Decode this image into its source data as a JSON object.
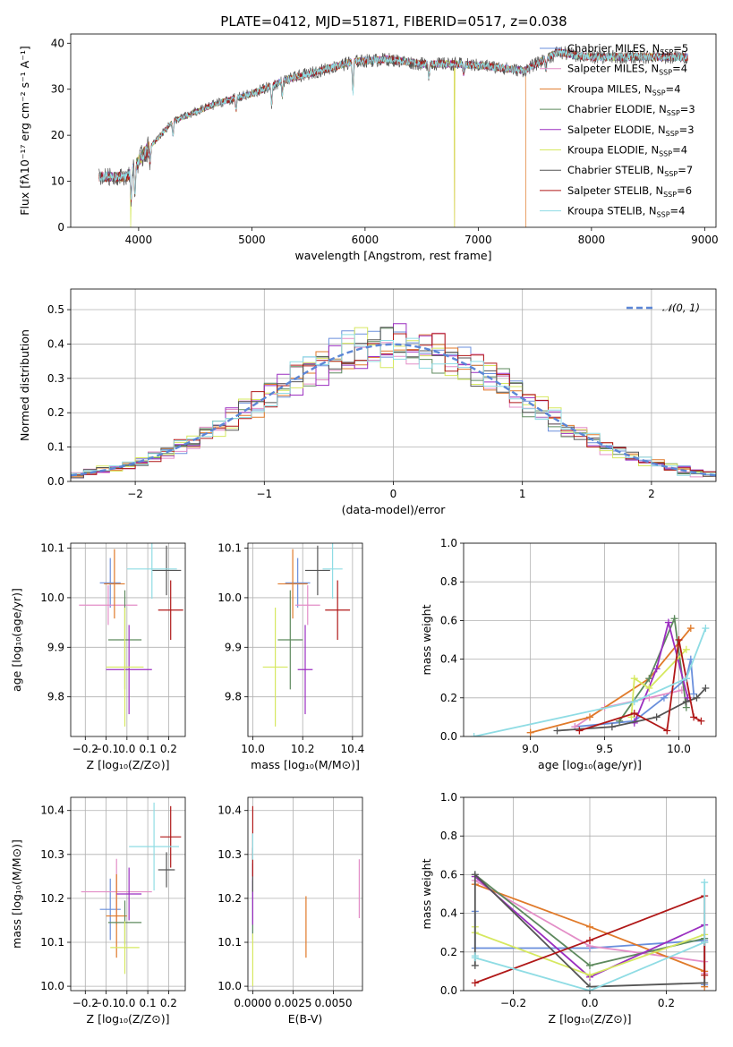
{
  "title": "PLATE=0412, MJD=51871, FIBERID=0517, z=0.038",
  "models": [
    {
      "name": "Chabrier MILES",
      "nssp": "5",
      "color": "#6a8fdc"
    },
    {
      "name": "Salpeter MILES",
      "nssp": "4",
      "color": "#e38ec7"
    },
    {
      "name": "Kroupa MILES",
      "nssp": "4",
      "color": "#e07a2a"
    },
    {
      "name": "Chabrier ELODIE",
      "nssp": "3",
      "color": "#5e8a5e"
    },
    {
      "name": "Salpeter ELODIE",
      "nssp": "3",
      "color": "#9b2fc0"
    },
    {
      "name": "Kroupa ELODIE",
      "nssp": "4",
      "color": "#d6e860"
    },
    {
      "name": "Chabrier STELIB",
      "nssp": "7",
      "color": "#555555"
    },
    {
      "name": "Salpeter STELIB",
      "nssp": "6",
      "color": "#b01818"
    },
    {
      "name": "Kroupa STELIB",
      "nssp": "4",
      "color": "#8fdce4"
    }
  ],
  "legend_nssp_prefix": "N",
  "legend_nssp_sub": "SSP",
  "chart_data": [
    {
      "id": "spectrum",
      "type": "line",
      "xlabel": "wavelength [Angstrom, rest frame]",
      "ylabel": "Flux [fλ10⁻¹⁷ erg cm⁻² s⁻¹ A⁻¹]",
      "xlim": [
        3400,
        9100
      ],
      "ylim": [
        0,
        42
      ],
      "xticks": [
        4000,
        5000,
        6000,
        7000,
        8000,
        9000
      ],
      "yticks": [
        0,
        10,
        20,
        30,
        40
      ],
      "grid": false,
      "legend": "right",
      "continuum": [
        [
          3650,
          11
        ],
        [
          3900,
          11
        ],
        [
          4050,
          16
        ],
        [
          4300,
          23
        ],
        [
          4700,
          27
        ],
        [
          5000,
          29
        ],
        [
          5300,
          32
        ],
        [
          5600,
          34
        ],
        [
          5900,
          36
        ],
        [
          6200,
          36.5
        ],
        [
          6500,
          35.5
        ],
        [
          6800,
          35.5
        ],
        [
          7100,
          35
        ],
        [
          7400,
          34
        ],
        [
          7700,
          38
        ],
        [
          8000,
          37
        ],
        [
          8400,
          37
        ],
        [
          8850,
          37
        ]
      ],
      "dropouts": [
        {
          "model": 5,
          "x": 3930
        },
        {
          "model": 2,
          "x": 6790
        },
        {
          "model": 5,
          "x": 6790
        },
        {
          "model": 2,
          "x": 7420
        }
      ]
    },
    {
      "id": "residuals",
      "type": "histogram",
      "xlabel": "(data-model)/error",
      "ylabel": "Normed distribution",
      "xlim": [
        -2.5,
        2.5
      ],
      "ylim": [
        0,
        0.56
      ],
      "xticks": [
        -2,
        -1,
        0,
        1,
        2
      ],
      "yticks": [
        0.0,
        0.1,
        0.2,
        0.3,
        0.4,
        0.5
      ],
      "grid": true,
      "legend": "top-right",
      "reference_curve": "𝒩(0, 1)",
      "bin_width": 0.1
    },
    {
      "id": "age_vs_Z",
      "type": "errorbar",
      "xlabel": "Z [log₁₀(Z/Z⊙)]",
      "ylabel": "age  [log₁₀(age/yr)]",
      "xlim": [
        -0.27,
        0.28
      ],
      "ylim": [
        9.72,
        10.11
      ],
      "xticks": [
        -0.2,
        -0.1,
        0.0,
        0.1,
        0.2
      ],
      "yticks": [
        9.8,
        9.9,
        10.0,
        10.1
      ],
      "points": [
        {
          "m": 0,
          "x": -0.08,
          "xe": 0.05,
          "y": 10.03,
          "ye": 0.05
        },
        {
          "m": 1,
          "x": -0.09,
          "xe": 0.14,
          "y": 9.985,
          "ye": 0.04
        },
        {
          "m": 2,
          "x": -0.06,
          "xe": 0.05,
          "y": 10.028,
          "ye": 0.07
        },
        {
          "m": 3,
          "x": -0.01,
          "xe": 0.08,
          "y": 9.915,
          "ye": 0.1
        },
        {
          "m": 4,
          "x": 0.01,
          "xe": 0.11,
          "y": 9.855,
          "ye": 0.09
        },
        {
          "m": 5,
          "x": -0.01,
          "xe": 0.09,
          "y": 9.86,
          "ye": 0.12
        },
        {
          "m": 6,
          "x": 0.19,
          "xe": 0.07,
          "y": 10.055,
          "ye": 0.05
        },
        {
          "m": 7,
          "x": 0.21,
          "xe": 0.06,
          "y": 9.975,
          "ye": 0.06
        },
        {
          "m": 8,
          "x": 0.12,
          "xe": 0.12,
          "y": 10.058,
          "ye": 0.06
        }
      ]
    },
    {
      "id": "age_vs_mass",
      "type": "errorbar",
      "xlabel": "mass [log₁₀(M/M⊙)]",
      "ylabel": "",
      "xlim": [
        9.98,
        10.44
      ],
      "ylim": [
        9.72,
        10.11
      ],
      "xticks": [
        10.0,
        10.2,
        10.4
      ],
      "yticks": [
        9.8,
        9.9,
        10.0,
        10.1
      ],
      "points": [
        {
          "m": 0,
          "x": 10.18,
          "xe": 0.05,
          "y": 10.03,
          "ye": 0.05
        },
        {
          "m": 1,
          "x": 10.22,
          "xe": 0.05,
          "y": 9.985,
          "ye": 0.04
        },
        {
          "m": 2,
          "x": 10.16,
          "xe": 0.06,
          "y": 10.028,
          "ye": 0.07
        },
        {
          "m": 3,
          "x": 10.15,
          "xe": 0.05,
          "y": 9.915,
          "ye": 0.1
        },
        {
          "m": 4,
          "x": 10.21,
          "xe": 0.03,
          "y": 9.855,
          "ye": 0.09
        },
        {
          "m": 5,
          "x": 10.09,
          "xe": 0.05,
          "y": 9.86,
          "ye": 0.12
        },
        {
          "m": 6,
          "x": 10.26,
          "xe": 0.05,
          "y": 10.055,
          "ye": 0.05
        },
        {
          "m": 7,
          "x": 10.34,
          "xe": 0.05,
          "y": 9.975,
          "ye": 0.06
        },
        {
          "m": 8,
          "x": 10.32,
          "xe": 0.04,
          "y": 10.058,
          "ye": 0.06
        }
      ]
    },
    {
      "id": "mass_weight_vs_age",
      "type": "line",
      "xlabel": "age  [log₁₀(age/yr)]",
      "ylabel": "mass weight",
      "xlim": [
        8.55,
        10.25
      ],
      "ylim": [
        0,
        1.0
      ],
      "xticks": [
        9.0,
        9.5,
        10.0
      ],
      "yticks": [
        0.0,
        0.2,
        0.4,
        0.6,
        0.8,
        1.0
      ],
      "grid": true,
      "series": [
        {
          "m": 0,
          "x": [
            9.3,
            9.7,
            9.9,
            10.05,
            10.08,
            10.1
          ],
          "y": [
            0.05,
            0.08,
            0.2,
            0.3,
            0.4,
            0.22
          ]
        },
        {
          "m": 1,
          "x": [
            9.3,
            9.5,
            9.8,
            10.02
          ],
          "y": [
            0.05,
            0.15,
            0.2,
            0.24
          ]
        },
        {
          "m": 2,
          "x": [
            9.0,
            9.4,
            9.8,
            10.08
          ],
          "y": [
            0.02,
            0.1,
            0.3,
            0.56
          ]
        },
        {
          "m": 3,
          "x": [
            9.6,
            9.8,
            9.97,
            10.05
          ],
          "y": [
            0.08,
            0.3,
            0.61,
            0.15
          ]
        },
        {
          "m": 4,
          "x": [
            9.7,
            9.85,
            9.93,
            10.06
          ],
          "y": [
            0.07,
            0.35,
            0.59,
            0.2
          ]
        },
        {
          "m": 5,
          "x": [
            9.68,
            9.7,
            9.8,
            10.05
          ],
          "y": [
            0.1,
            0.3,
            0.25,
            0.45
          ]
        },
        {
          "m": 6,
          "x": [
            9.18,
            9.55,
            9.85,
            10.05,
            10.12,
            10.18
          ],
          "y": [
            0.03,
            0.05,
            0.1,
            0.18,
            0.2,
            0.25
          ]
        },
        {
          "m": 7,
          "x": [
            9.33,
            9.7,
            9.92,
            10.0,
            10.1,
            10.15
          ],
          "y": [
            0.03,
            0.12,
            0.03,
            0.5,
            0.1,
            0.08
          ]
        },
        {
          "m": 8,
          "x": [
            8.62,
            9.7,
            10.05,
            10.18
          ],
          "y": [
            0.0,
            0.18,
            0.3,
            0.56
          ]
        }
      ]
    },
    {
      "id": "mass_vs_Z",
      "type": "errorbar",
      "xlabel": "Z [log₁₀(Z/Z⊙)]",
      "ylabel": "mass [log₁₀(M/M⊙)]",
      "xlim": [
        -0.27,
        0.28
      ],
      "ylim": [
        9.99,
        10.43
      ],
      "xticks": [
        -0.2,
        -0.1,
        0.0,
        0.1,
        0.2
      ],
      "yticks": [
        10.0,
        10.1,
        10.2,
        10.3,
        10.4
      ],
      "points": [
        {
          "m": 0,
          "x": -0.08,
          "xe": 0.05,
          "y": 10.175,
          "ye": 0.07
        },
        {
          "m": 1,
          "x": -0.05,
          "xe": 0.17,
          "y": 10.215,
          "ye": 0.075
        },
        {
          "m": 2,
          "x": -0.05,
          "xe": 0.05,
          "y": 10.16,
          "ye": 0.095
        },
        {
          "m": 3,
          "x": -0.01,
          "xe": 0.08,
          "y": 10.145,
          "ye": 0.05
        },
        {
          "m": 4,
          "x": 0.01,
          "xe": 0.06,
          "y": 10.21,
          "ye": 0.06
        },
        {
          "m": 5,
          "x": -0.01,
          "xe": 0.07,
          "y": 10.088,
          "ye": 0.06
        },
        {
          "m": 6,
          "x": 0.19,
          "xe": 0.04,
          "y": 10.265,
          "ye": 0.04
        },
        {
          "m": 7,
          "x": 0.21,
          "xe": 0.05,
          "y": 10.34,
          "ye": 0.07
        },
        {
          "m": 8,
          "x": 0.13,
          "xe": 0.12,
          "y": 10.318,
          "ye": 0.1
        }
      ]
    },
    {
      "id": "mass_vs_ebv",
      "type": "errorbar",
      "xlabel": "E(B-V)",
      "ylabel": "",
      "xlim": [
        -0.0003,
        0.0068
      ],
      "ylim": [
        9.99,
        10.43
      ],
      "xticks": [
        0.0,
        0.0025,
        0.005
      ],
      "xticklabels": [
        "0.0000",
        "0.0025",
        "0.0050"
      ],
      "yticks": [
        10.0,
        10.1,
        10.2,
        10.3,
        10.4
      ],
      "points": [
        {
          "m": 0,
          "x": 0.0,
          "xe": 0,
          "y": 10.175,
          "ye": 0.07
        },
        {
          "m": 1,
          "x": 0.0066,
          "xe": 0,
          "y": 10.222,
          "ye": 0.067
        },
        {
          "m": 2,
          "x": 0.0033,
          "xe": 0,
          "y": 10.135,
          "ye": 0.07
        },
        {
          "m": 3,
          "x": 0.0,
          "xe": 0,
          "y": 10.18,
          "ye": 0.06
        },
        {
          "m": 4,
          "x": 0.0,
          "xe": 0,
          "y": 10.21,
          "ye": 0.07
        },
        {
          "m": 5,
          "x": 0.0,
          "xe": 0,
          "y": 10.06,
          "ye": 0.06
        },
        {
          "m": 6,
          "x": 0.0,
          "xe": 0,
          "y": 10.265,
          "ye": 0.05
        },
        {
          "m": 7,
          "x": 0.0,
          "xe": 0,
          "y": 10.33,
          "ye": 0.08
        },
        {
          "m": 8,
          "x": 0.0,
          "xe": 0,
          "y": 10.318,
          "ye": 0.03
        }
      ]
    },
    {
      "id": "mass_weight_vs_Z",
      "type": "line",
      "xlabel": "Z [log₁₀(Z/Z⊙)]",
      "ylabel": "mass weight",
      "xlim": [
        -0.33,
        0.33
      ],
      "ylim": [
        0,
        1.0
      ],
      "xticks": [
        -0.2,
        0.0,
        0.2
      ],
      "yticks": [
        0.0,
        0.2,
        0.4,
        0.6,
        0.8,
        1.0
      ],
      "grid": true,
      "series": [
        {
          "m": 0,
          "x": [
            -0.3,
            -0.3,
            0.0,
            0.3,
            0.3
          ],
          "y": [
            0.41,
            0.22,
            0.22,
            0.26,
            0.03
          ]
        },
        {
          "m": 1,
          "x": [
            -0.3,
            0.0,
            0.3,
            0.3
          ],
          "y": [
            0.57,
            0.23,
            0.15,
            0.09
          ]
        },
        {
          "m": 2,
          "x": [
            -0.3,
            0.0,
            0.3,
            0.3
          ],
          "y": [
            0.55,
            0.33,
            0.1,
            0.02
          ]
        },
        {
          "m": 3,
          "x": [
            -0.3,
            0.0,
            0.3
          ],
          "y": [
            0.6,
            0.13,
            0.27
          ]
        },
        {
          "m": 4,
          "x": [
            -0.3,
            0.0,
            0.3
          ],
          "y": [
            0.59,
            0.07,
            0.34
          ]
        },
        {
          "m": 5,
          "x": [
            -0.3,
            -0.3,
            0.0,
            0.3
          ],
          "y": [
            0.33,
            0.3,
            0.08,
            0.29
          ]
        },
        {
          "m": 6,
          "x": [
            -0.3,
            -0.3,
            0.0,
            0.3,
            0.3
          ],
          "y": [
            0.13,
            0.6,
            0.02,
            0.04,
            0.25
          ]
        },
        {
          "m": 7,
          "x": [
            -0.3,
            0.0,
            0.3,
            0.3
          ],
          "y": [
            0.04,
            0.26,
            0.49,
            0.08
          ]
        },
        {
          "m": 8,
          "x": [
            -0.3,
            -0.3,
            0.0,
            0.3,
            0.3
          ],
          "y": [
            0.18,
            0.17,
            0.0,
            0.25,
            0.56
          ]
        }
      ]
    }
  ]
}
